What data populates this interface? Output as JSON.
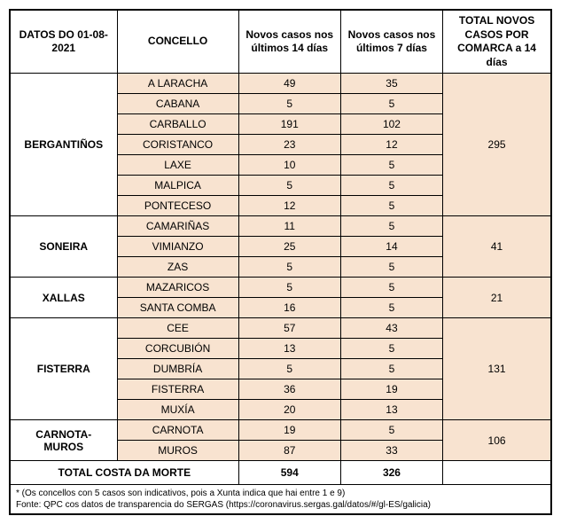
{
  "headers": {
    "date": "DATOS DO 01-08-2021",
    "concello": "CONCELLO",
    "cases14": "Novos casos nos últimos 14 días",
    "cases7": "Novos casos nos últimos 7 días",
    "totalComarca": "TOTAL NOVOS CASOS POR COMARCA a 14 días"
  },
  "colors": {
    "dataBg": "#f8e3d0",
    "border": "#000000",
    "plainBg": "#ffffff"
  },
  "comarcas": [
    {
      "name": "BERGANTIÑOS",
      "total": 295,
      "rows": [
        {
          "concello": "A LARACHA",
          "c14": 49,
          "c7": 35
        },
        {
          "concello": "CABANA",
          "c14": 5,
          "c7": 5
        },
        {
          "concello": "CARBALLO",
          "c14": 191,
          "c7": 102
        },
        {
          "concello": "CORISTANCO",
          "c14": 23,
          "c7": 12
        },
        {
          "concello": "LAXE",
          "c14": 10,
          "c7": 5
        },
        {
          "concello": "MALPICA",
          "c14": 5,
          "c7": 5
        },
        {
          "concello": "PONTECESO",
          "c14": 12,
          "c7": 5
        }
      ]
    },
    {
      "name": "SONEIRA",
      "total": 41,
      "rows": [
        {
          "concello": "CAMARIÑAS",
          "c14": 11,
          "c7": 5
        },
        {
          "concello": "VIMIANZO",
          "c14": 25,
          "c7": 14
        },
        {
          "concello": "ZAS",
          "c14": 5,
          "c7": 5
        }
      ]
    },
    {
      "name": "XALLAS",
      "total": 21,
      "rows": [
        {
          "concello": "MAZARICOS",
          "c14": 5,
          "c7": 5
        },
        {
          "concello": "SANTA COMBA",
          "c14": 16,
          "c7": 5
        }
      ]
    },
    {
      "name": "FISTERRA",
      "total": 131,
      "rows": [
        {
          "concello": "CEE",
          "c14": 57,
          "c7": 43
        },
        {
          "concello": "CORCUBIÓN",
          "c14": 13,
          "c7": 5
        },
        {
          "concello": "DUMBRÍA",
          "c14": 5,
          "c7": 5
        },
        {
          "concello": "FISTERRA",
          "c14": 36,
          "c7": 19
        },
        {
          "concello": "MUXÍA",
          "c14": 20,
          "c7": 13
        }
      ]
    },
    {
      "name": "CARNOTA-MUROS",
      "total": 106,
      "rows": [
        {
          "concello": "CARNOTA",
          "c14": 19,
          "c7": 5
        },
        {
          "concello": "MUROS",
          "c14": 87,
          "c7": 33
        }
      ]
    }
  ],
  "totalRow": {
    "label": "TOTAL COSTA DA MORTE",
    "c14": 594,
    "c7": 326
  },
  "footnote": {
    "line1": "* (Os concellos con 5 casos son indicativos, pois a Xunta indica que hai entre 1 e 9)",
    "line2": "Fonte: QPC cos datos de transparencia do SERGAS (https://coronavirus.sergas.gal/datos/#/gl-ES/galicia)"
  }
}
